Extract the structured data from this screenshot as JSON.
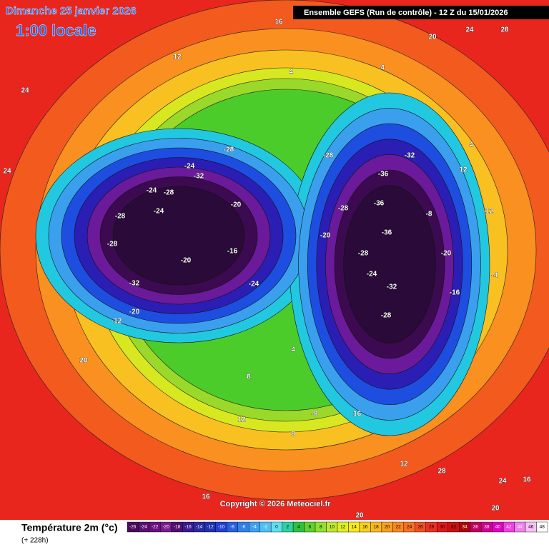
{
  "header": {
    "date": "Dimanche 25 janvier 2026",
    "time": "1:00 locale",
    "run": "Ensemble GEFS  (Run de contrôle)  -  12 Z du 15/01/2026"
  },
  "map": {
    "labels": [
      "24",
      "24",
      "20",
      "16",
      "20",
      "24",
      "28",
      "12",
      "4",
      "4",
      "-28",
      "-24",
      "-32",
      "-24",
      "-28",
      "-20",
      "-28",
      "-24",
      "-28",
      "-16",
      "-20",
      "-32",
      "-24",
      "-12",
      "-20",
      "4",
      "8",
      "12",
      "16",
      "20",
      "-28",
      "-36",
      "-32",
      "-28",
      "-36",
      "-36",
      "-20",
      "-28",
      "-24",
      "-32",
      "-28",
      "-16",
      "-8",
      "-12",
      "-20",
      "-16",
      "-4",
      "4",
      "12",
      "24",
      "28",
      "16",
      "20",
      "12",
      "8",
      "-8"
    ],
    "copyright": "Copyright © 2026 Meteociel.fr"
  },
  "legend": {
    "title": "Température 2m (°c)",
    "subtitle": "(+ 228h)",
    "ticks": [
      -26,
      -24,
      -22,
      -20,
      -18,
      -16,
      -14,
      -12,
      -10,
      -8,
      -6,
      -4,
      -2,
      0,
      2,
      4,
      6,
      8,
      10,
      12,
      14,
      16,
      18,
      20,
      22,
      24,
      26,
      28,
      30,
      32,
      34,
      36,
      38,
      40,
      42,
      44,
      46,
      48
    ],
    "colors": [
      "#4a0a5a",
      "#5a1070",
      "#6a1080",
      "#7a1a90",
      "#501070",
      "#3a1a90",
      "#2a2aa0",
      "#2030b0",
      "#2040d0",
      "#2a60e0",
      "#3080e8",
      "#40a0f0",
      "#50c0f0",
      "#60e0f0",
      "#30d0a0",
      "#30c040",
      "#60d030",
      "#90e030",
      "#c0e830",
      "#e0f020",
      "#f8e820",
      "#f8d020",
      "#f8b820",
      "#f8a020",
      "#f88820",
      "#f87020",
      "#f05020",
      "#e83020",
      "#e01818",
      "#c81010",
      "#a80808",
      "#c00060",
      "#d00090",
      "#e000c0",
      "#f040e0",
      "#f080f0",
      "#f8c0f8",
      "#ffffff"
    ]
  }
}
